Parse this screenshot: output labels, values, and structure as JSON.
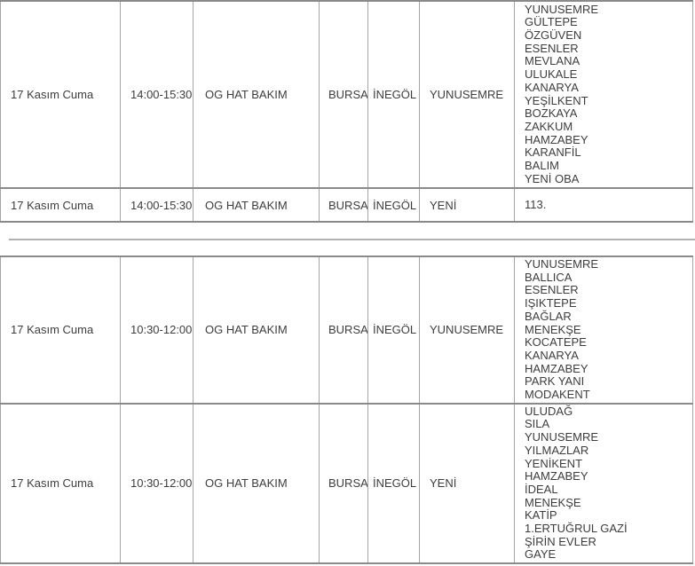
{
  "colors": {
    "background": "#ffffff",
    "text": "#3d3d3d",
    "row_border": "#8a8a8a",
    "column_border": "#a6a6a6",
    "separator_line": "#b2b2b2"
  },
  "outage_tables": [
    {
      "rows": [
        {
          "date": "17 Kasım Cuma",
          "time": "14:00-15:30",
          "work_type": "OG HAT BAKIM",
          "city": "BURSA",
          "district": "İNEGÖL",
          "neighborhood": "YUNUSEMRE",
          "areas": [
            "YUNUSEMRE",
            "GÜLTEPE",
            "ÖZGÜVEN",
            "ESENLER",
            "MEVLANA",
            "ULUKALE",
            "KANARYA",
            "YEŞİLKENT",
            "BOZKAYA",
            "ZAKKUM",
            "HAMZABEY",
            "KARANFİL",
            "BALIM",
            "YENİ OBA"
          ]
        },
        {
          "date": "17 Kasım Cuma",
          "time": "14:00-15:30",
          "work_type": "OG HAT BAKIM",
          "city": "BURSA",
          "district": "İNEGÖL",
          "neighborhood": "YENİ",
          "areas": [
            "113."
          ]
        }
      ]
    },
    {
      "rows": [
        {
          "date": "17 Kasım Cuma",
          "time": "10:30-12:00",
          "work_type": "OG HAT BAKIM",
          "city": "BURSA",
          "district": "İNEGÖL",
          "neighborhood": "YUNUSEMRE",
          "areas": [
            "YUNUSEMRE",
            "BALLICA",
            "ESENLER",
            "IŞIKTEPE",
            "BAĞLAR",
            "MENEKŞE",
            "KOCATEPE",
            "KANARYA",
            "HAMZABEY",
            "PARK YANI",
            "MODAKENT"
          ]
        },
        {
          "date": "17 Kasım Cuma",
          "time": "10:30-12:00",
          "work_type": "OG HAT BAKIM",
          "city": "BURSA",
          "district": "İNEGÖL",
          "neighborhood": "YENİ",
          "areas": [
            "ULUDAĞ",
            "SILA",
            "YUNUSEMRE",
            "YILMAZLAR",
            "YENİKENT",
            "HAMZABEY",
            "İDEAL",
            "MENEKŞE",
            "KATİP",
            "1.ERTUĞRUL GAZİ",
            "ŞİRİN EVLER",
            "GAYE"
          ]
        }
      ]
    }
  ]
}
